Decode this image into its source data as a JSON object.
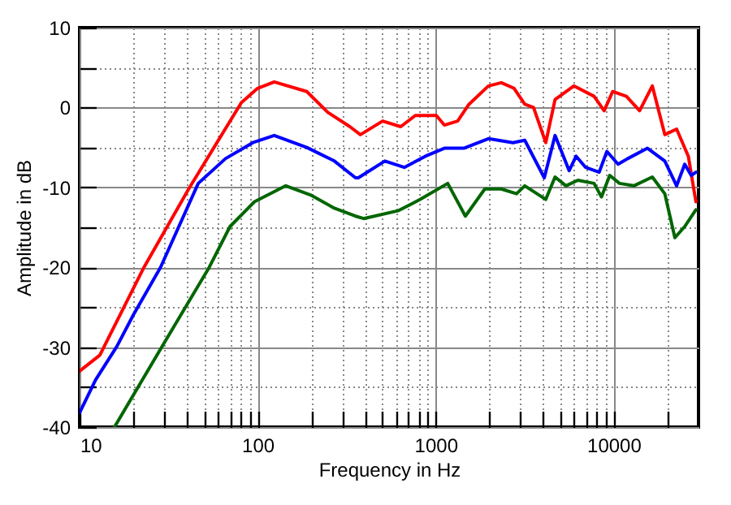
{
  "chart_data": {
    "type": "line",
    "xlabel": "Frequency in Hz",
    "ylabel": "Amplitude in dB",
    "log": "x",
    "grid": true,
    "legend": false,
    "line_style": "solid",
    "marker": "none",
    "xlim": [
      10,
      30000
    ],
    "ylim": [
      -40,
      10
    ],
    "xticks": [
      10,
      {
        "value": 20,
        "label": null
      },
      {
        "value": 30,
        "label": null
      },
      {
        "value": 40,
        "label": null
      },
      {
        "value": 50,
        "label": null
      },
      {
        "value": 60,
        "label": null
      },
      {
        "value": 70,
        "label": null
      },
      {
        "value": 80,
        "label": null
      },
      {
        "value": 90,
        "label": null
      },
      100,
      {
        "value": 200,
        "label": null
      },
      {
        "value": 300,
        "label": null
      },
      {
        "value": 400,
        "label": null
      },
      {
        "value": 500,
        "label": null
      },
      {
        "value": 600,
        "label": null
      },
      {
        "value": 700,
        "label": null
      },
      {
        "value": 800,
        "label": null
      },
      {
        "value": 900,
        "label": null
      },
      1000,
      {
        "value": 2000,
        "label": null
      },
      {
        "value": 3000,
        "label": null
      },
      {
        "value": 4000,
        "label": null
      },
      {
        "value": 5000,
        "label": null
      },
      {
        "value": 6000,
        "label": null
      },
      {
        "value": 7000,
        "label": null
      },
      {
        "value": 8000,
        "label": null
      },
      {
        "value": 9000,
        "label": null
      },
      10000,
      {
        "value": 20000,
        "label": null
      }
    ],
    "yticks": [
      -40,
      {
        "value": -35,
        "label": null
      },
      -30,
      {
        "value": -25,
        "label": null
      },
      -20,
      {
        "value": -15,
        "label": null
      },
      -10,
      {
        "value": -5,
        "label": null
      },
      0,
      {
        "value": 5,
        "label": null
      },
      10
    ],
    "series": [
      {
        "color": "#ff0000",
        "x": [
          10,
          13,
          23,
          41,
          81,
          100,
          124,
          189,
          248,
          330,
          378,
          504,
          637,
          770,
          1010,
          1120,
          1330,
          1540,
          1980,
          2340,
          2760,
          3170,
          3550,
          4160,
          4690,
          5980,
          7770,
          8850,
          9880,
          11800,
          14000,
          16500,
          19400,
          22600,
          26300,
          29000
        ],
        "values": [
          -33,
          -31,
          -20,
          -10.2,
          0.6,
          2.4,
          3.2,
          2,
          -0.6,
          -2.4,
          -3.4,
          -1.7,
          -2.4,
          -1,
          -1,
          -2.2,
          -1.7,
          0.4,
          2.7,
          3.1,
          2.4,
          0.4,
          0,
          -4.4,
          1,
          2.7,
          1.4,
          -0.4,
          2,
          1.4,
          -0.4,
          2.7,
          -3.4,
          -2.7,
          -6.1,
          -11.8
        ]
      },
      {
        "color": "#0000ff",
        "x": [
          10,
          12.3,
          16.2,
          20,
          28.5,
          46.4,
          66,
          94,
          124,
          189,
          270,
          355,
          368,
          519,
          667,
          876,
          1120,
          1440,
          1980,
          2720,
          3170,
          4080,
          4690,
          5630,
          6160,
          6970,
          8300,
          9170,
          10600,
          12000,
          15500,
          19400,
          22600,
          25100,
          27300,
          29000
        ],
        "values": [
          -38.2,
          -34.1,
          -29.9,
          -26,
          -20,
          -9.5,
          -6.4,
          -4.4,
          -3.5,
          -5,
          -6.7,
          -8.8,
          -8.8,
          -6.7,
          -7.5,
          -6.1,
          -5.1,
          -5.1,
          -3.9,
          -4.4,
          -4.1,
          -8.8,
          -3.5,
          -7.9,
          -6.1,
          -7.5,
          -8.1,
          -5.5,
          -7.1,
          -6.4,
          -5.1,
          -6.7,
          -9.8,
          -7.1,
          -8.5,
          -8.1
        ]
      },
      {
        "color": "#006600",
        "x": [
          15.7,
          29.8,
          53.5,
          70,
          96,
          144,
          201,
          270,
          355,
          394,
          620,
          820,
          1170,
          1470,
          1890,
          2340,
          2850,
          3170,
          4160,
          4690,
          5400,
          6300,
          7770,
          8550,
          9510,
          10800,
          13000,
          16500,
          19400,
          22100,
          25100,
          29000
        ],
        "values": [
          -40,
          -29.5,
          -20,
          -14.9,
          -11.8,
          -9.8,
          -11,
          -12.6,
          -13.6,
          -13.9,
          -12.9,
          -11.5,
          -9.5,
          -13.6,
          -10.2,
          -10.2,
          -10.8,
          -9.8,
          -11.5,
          -8.7,
          -9.8,
          -9.1,
          -9.5,
          -11.2,
          -8.5,
          -9.5,
          -9.8,
          -8.7,
          -10.8,
          -16.3,
          -14.9,
          -12.8
        ]
      }
    ]
  }
}
